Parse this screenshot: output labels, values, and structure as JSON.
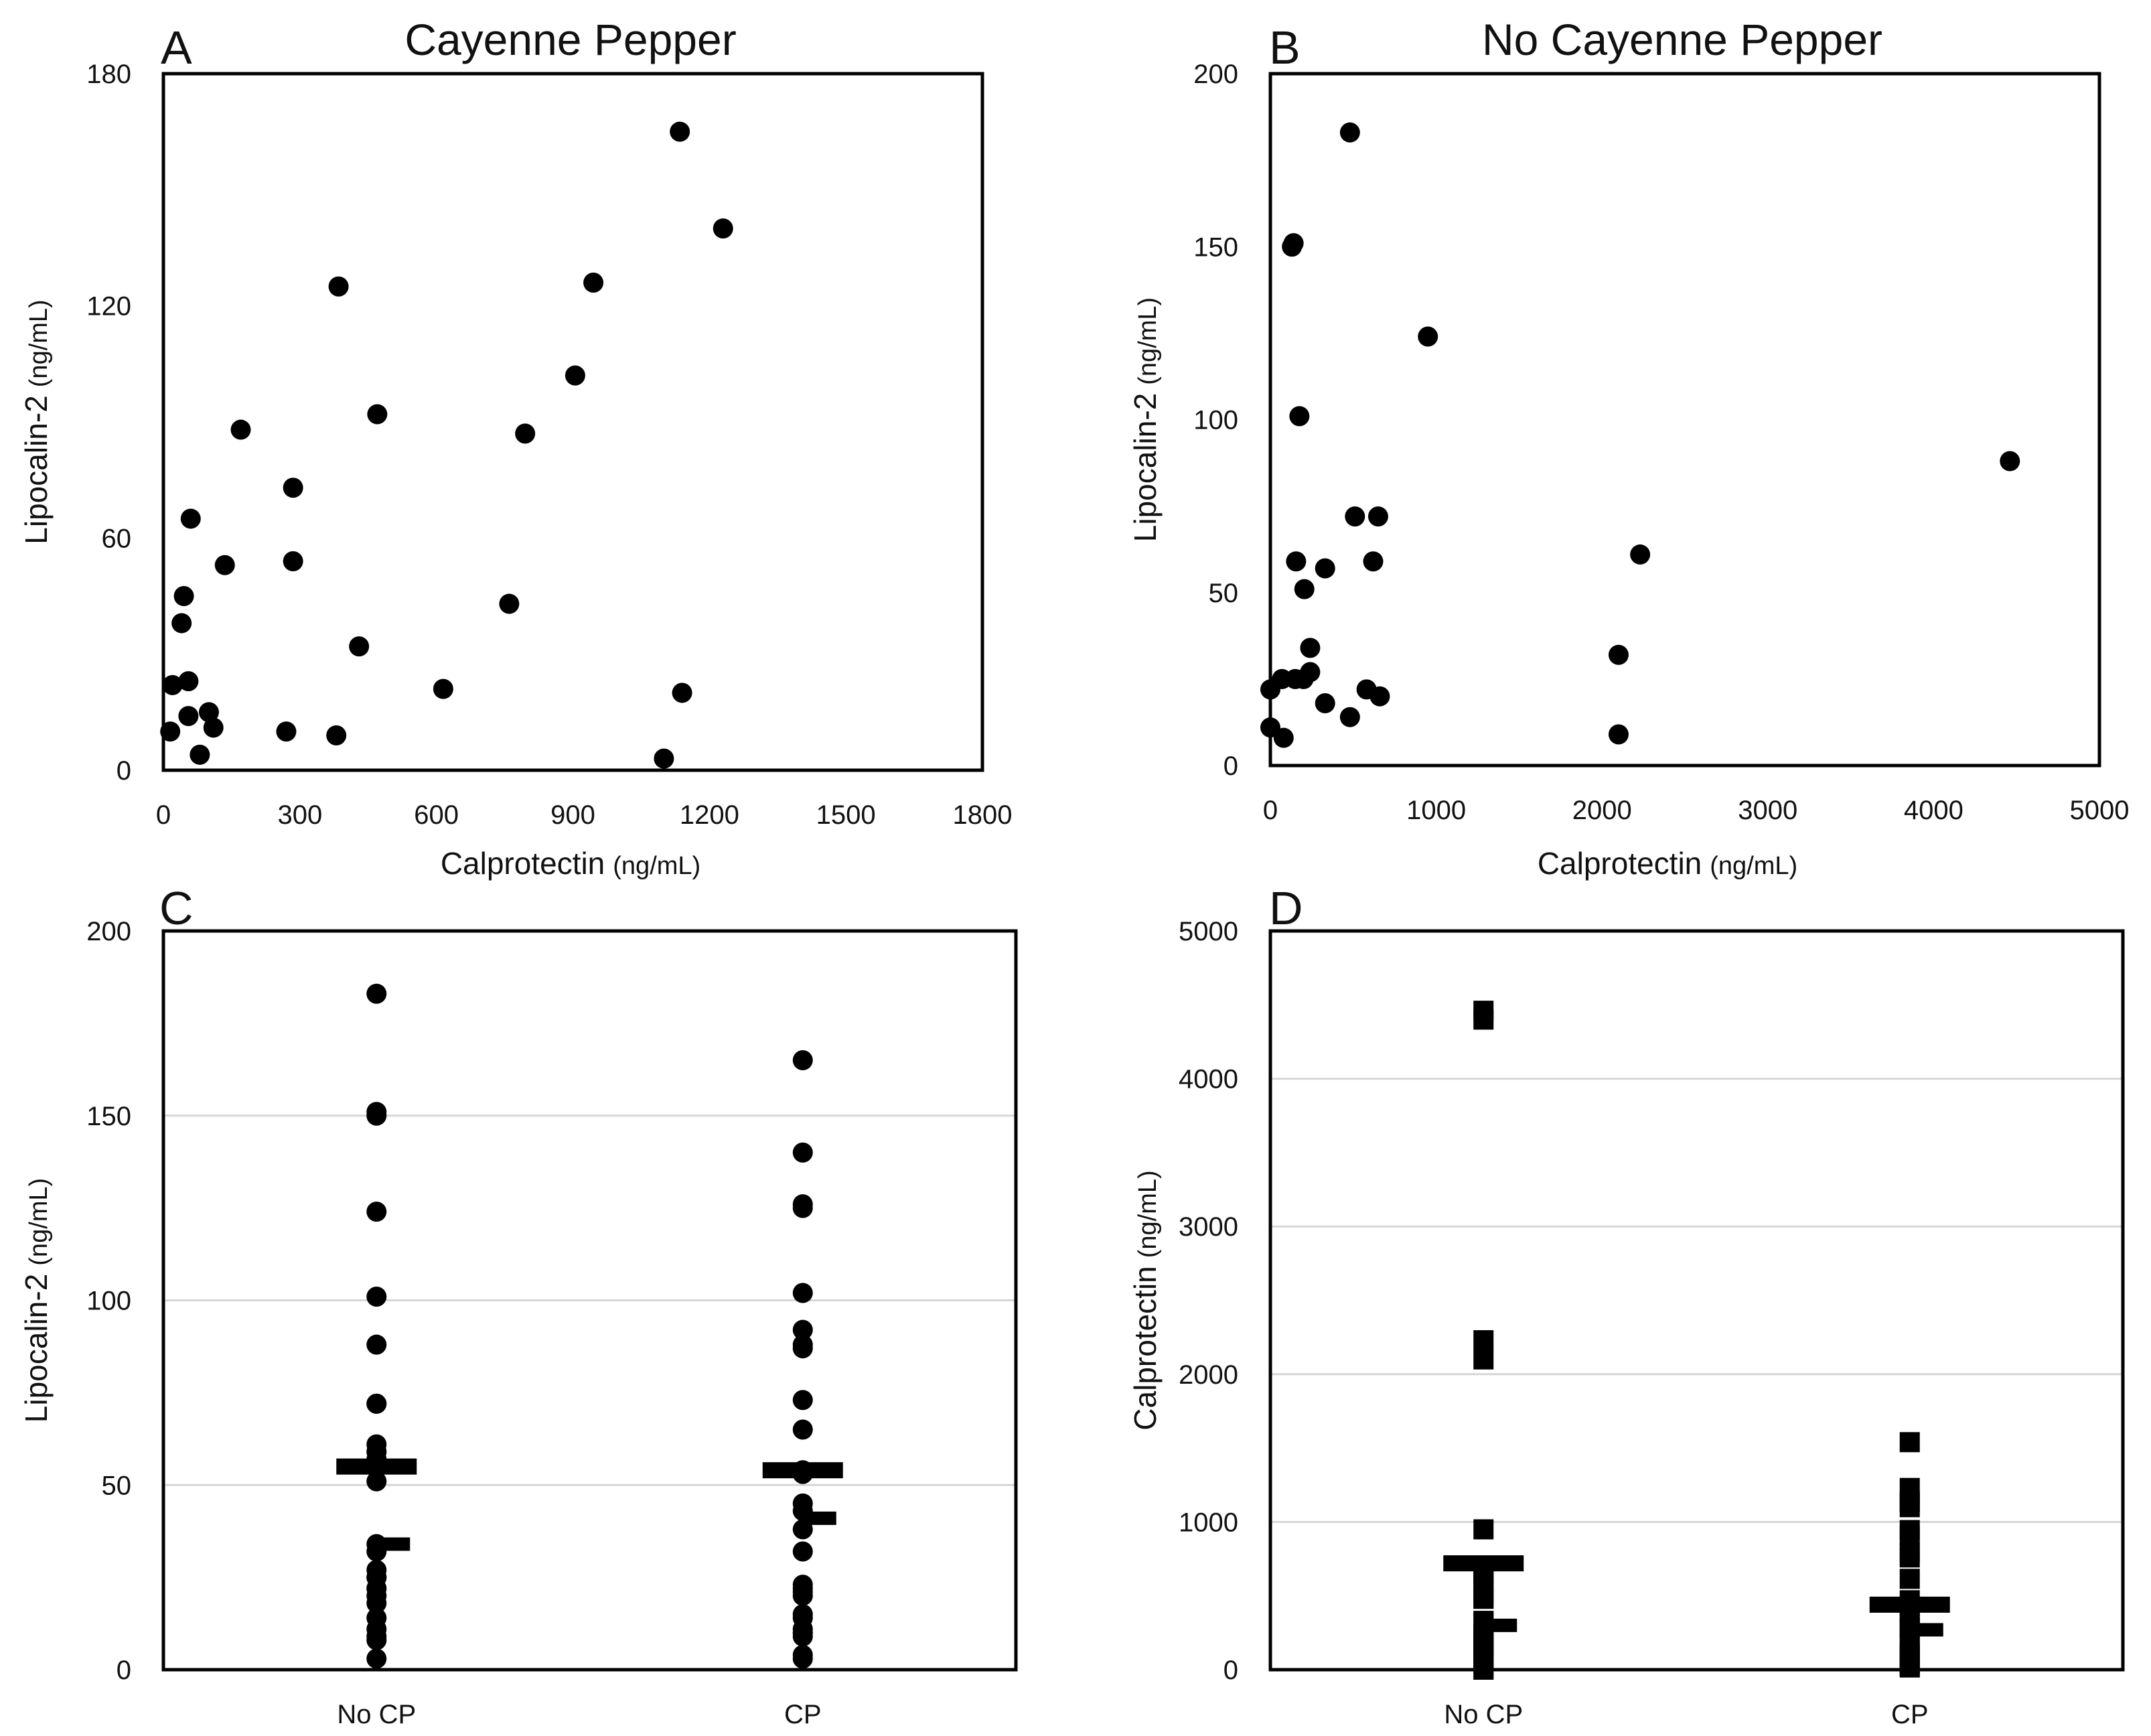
{
  "figure": {
    "panels": [
      "A",
      "B",
      "C",
      "D"
    ]
  },
  "chart_data": [
    {
      "id": "A",
      "type": "scatter",
      "panel_letter": "A",
      "title": "Cayenne Pepper",
      "xlabel": "Calprotectin",
      "xlabel_unit": "(ng/mL)",
      "ylabel": "Lipocalin-2",
      "ylabel_unit": "(ng/mL)",
      "xlim": [
        0,
        1800
      ],
      "ylim": [
        0,
        180
      ],
      "xticks": [
        "0",
        "300",
        "600",
        "900",
        "1200",
        "1500",
        "1800"
      ],
      "yticks": [
        "0",
        "60",
        "120",
        "180"
      ],
      "grid": false,
      "color": "#000000",
      "points": [
        [
          1135,
          165
        ],
        [
          1230,
          140
        ],
        [
          385,
          125
        ],
        [
          945,
          126
        ],
        [
          905,
          102
        ],
        [
          470,
          92
        ],
        [
          795,
          87
        ],
        [
          170,
          88
        ],
        [
          285,
          73
        ],
        [
          60,
          65
        ],
        [
          285,
          54
        ],
        [
          135,
          53
        ],
        [
          45,
          45
        ],
        [
          40,
          38
        ],
        [
          760,
          43
        ],
        [
          430,
          32
        ],
        [
          20,
          22
        ],
        [
          55,
          23
        ],
        [
          615,
          21
        ],
        [
          1140,
          20
        ],
        [
          55,
          14
        ],
        [
          100,
          15
        ],
        [
          110,
          11
        ],
        [
          270,
          10
        ],
        [
          380,
          9
        ],
        [
          15,
          10
        ],
        [
          80,
          4
        ],
        [
          1100,
          3
        ]
      ]
    },
    {
      "id": "B",
      "type": "scatter",
      "panel_letter": "B",
      "title": "No Cayenne Pepper",
      "xlabel": "Calprotectin",
      "xlabel_unit": "(ng/mL)",
      "ylabel": "Lipocalin-2",
      "ylabel_unit": "(ng/mL)",
      "xlim": [
        0,
        5000
      ],
      "ylim": [
        0,
        200
      ],
      "xticks": [
        "0",
        "1000",
        "2000",
        "3000",
        "4000",
        "5000"
      ],
      "yticks": [
        "0",
        "50",
        "100",
        "150",
        "200"
      ],
      "grid": false,
      "color": "#000000",
      "points": [
        [
          480,
          183
        ],
        [
          140,
          151
        ],
        [
          130,
          150
        ],
        [
          950,
          124
        ],
        [
          175,
          101
        ],
        [
          4460,
          88
        ],
        [
          650,
          72
        ],
        [
          510,
          72
        ],
        [
          2230,
          61
        ],
        [
          155,
          59
        ],
        [
          620,
          59
        ],
        [
          330,
          57
        ],
        [
          205,
          51
        ],
        [
          240,
          34
        ],
        [
          2100,
          32
        ],
        [
          240,
          27
        ],
        [
          70,
          25
        ],
        [
          150,
          25
        ],
        [
          200,
          25
        ],
        [
          0,
          22
        ],
        [
          580,
          22
        ],
        [
          660,
          20
        ],
        [
          330,
          18
        ],
        [
          480,
          14
        ],
        [
          0,
          11
        ],
        [
          80,
          8
        ],
        [
          2100,
          9
        ]
      ]
    },
    {
      "id": "C",
      "type": "scatter",
      "panel_letter": "C",
      "title": "",
      "xlabel": "",
      "ylabel": "Lipocalin-2",
      "ylabel_unit": "(ng/mL)",
      "categories": [
        "No CP",
        "CP"
      ],
      "ylim": [
        0,
        200
      ],
      "yticks": [
        "0",
        "50",
        "100",
        "150",
        "200"
      ],
      "grid": true,
      "color": "#000000",
      "series": [
        {
          "name": "No CP",
          "values": [
            183,
            151,
            150,
            124,
            101,
            88,
            72,
            72,
            61,
            59,
            59,
            57,
            51,
            34,
            32,
            27,
            25,
            25,
            25,
            22,
            22,
            20,
            18,
            14,
            11,
            9,
            8,
            3
          ],
          "mean": 55,
          "median": 34
        },
        {
          "name": "CP",
          "values": [
            165,
            140,
            126,
            125,
            102,
            92,
            88,
            87,
            73,
            65,
            54,
            53,
            45,
            43,
            38,
            32,
            23,
            22,
            21,
            20,
            15,
            14,
            11,
            10,
            10,
            9,
            4,
            3
          ],
          "mean": 54,
          "median": 41
        }
      ]
    },
    {
      "id": "D",
      "type": "scatter",
      "panel_letter": "D",
      "title": "",
      "xlabel": "",
      "ylabel": "Calprotectin",
      "ylabel_unit": "(ng/mL)",
      "categories": [
        "No CP",
        "CP"
      ],
      "ylim": [
        0,
        5000
      ],
      "yticks": [
        "0",
        "1000",
        "2000",
        "3000",
        "4000",
        "5000"
      ],
      "grid": true,
      "color": "#000000",
      "series": [
        {
          "name": "No CP",
          "values": [
            4460,
            4400,
            2230,
            2100,
            950,
            660,
            650,
            620,
            580,
            510,
            480,
            480,
            330,
            330,
            240,
            240,
            205,
            200,
            175,
            155,
            150,
            140,
            130,
            80,
            70,
            0,
            0
          ],
          "mean": 720,
          "median": 300
        },
        {
          "name": "CP",
          "values": [
            1540,
            1230,
            1140,
            1135,
            1100,
            945,
            905,
            795,
            760,
            615,
            470,
            430,
            385,
            380,
            285,
            285,
            270,
            170,
            135,
            110,
            100,
            80,
            60,
            55,
            55,
            45,
            40,
            20,
            15
          ],
          "mean": 440,
          "median": 270
        }
      ]
    }
  ]
}
